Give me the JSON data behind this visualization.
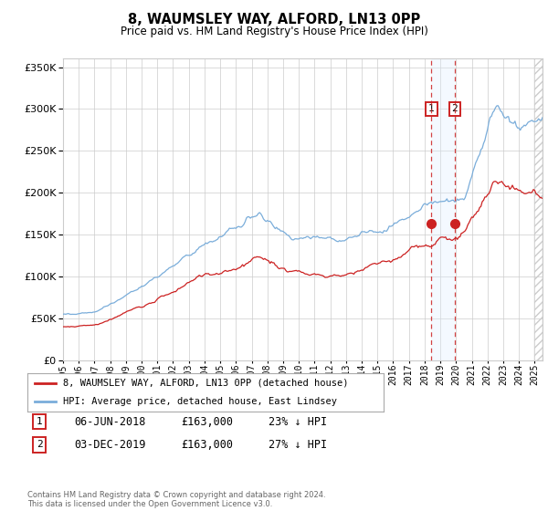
{
  "title": "8, WAUMSLEY WAY, ALFORD, LN13 0PP",
  "subtitle": "Price paid vs. HM Land Registry's House Price Index (HPI)",
  "transaction1_date": "06-JUN-2018",
  "transaction1_price": 163000,
  "transaction1_pct": "23% ↓ HPI",
  "transaction2_date": "03-DEC-2019",
  "transaction2_price": 163000,
  "transaction2_pct": "27% ↓ HPI",
  "transaction1_year": 2018.44,
  "transaction2_year": 2019.92,
  "legend_line1": "8, WAUMSLEY WAY, ALFORD, LN13 0PP (detached house)",
  "legend_line2": "HPI: Average price, detached house, East Lindsey",
  "footer": "Contains HM Land Registry data © Crown copyright and database right 2024.\nThis data is licensed under the Open Government Licence v3.0.",
  "hpi_color": "#7aadda",
  "property_color": "#cc2222",
  "marker_color": "#cc2222",
  "shading_color": "#ddeeff",
  "grid_color": "#cccccc",
  "bg_color": "#ffffff",
  "ylim": [
    0,
    360000
  ],
  "xlim_start": 1995.0,
  "xlim_end": 2025.5
}
